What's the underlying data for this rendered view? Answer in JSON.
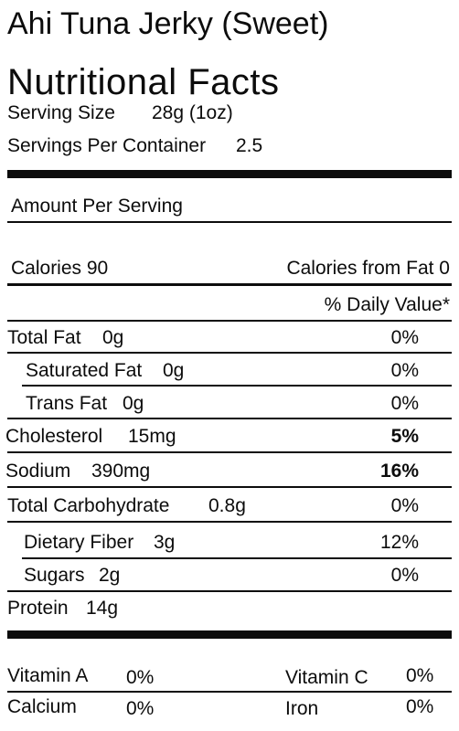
{
  "product_title": "Ahi Tuna Jerky (Sweet)",
  "heading": "Nutritional Facts",
  "serving_size": {
    "label": "Serving Size",
    "value": "28g (1oz)"
  },
  "servings_per_container": {
    "label": "Servings Per Container",
    "value": "2.5"
  },
  "amount_per_serving": "Amount Per Serving",
  "calories": {
    "label": "Calories 90",
    "from_fat": "Calories from Fat 0"
  },
  "daily_value_header": "% Daily Value*",
  "nutrients": [
    {
      "name": "Total Fat",
      "amount": "0g",
      "dv": "0%"
    },
    {
      "name": "Saturated Fat",
      "amount": "0g",
      "dv": "0%"
    },
    {
      "name": "Trans Fat",
      "amount": "0g",
      "dv": "0%"
    },
    {
      "name": "Cholesterol",
      "amount": "15mg",
      "dv": "5%"
    },
    {
      "name": "Sodium",
      "amount": "390mg",
      "dv": "16%"
    },
    {
      "name": "Total Carbohydrate",
      "amount": "0.8g",
      "dv": "0%"
    },
    {
      "name": "Dietary Fiber",
      "amount": "3g",
      "dv": "12%"
    },
    {
      "name": "Sugars",
      "amount": "2g",
      "dv": "0%"
    },
    {
      "name": "Protein",
      "amount": "14g",
      "dv": ""
    }
  ],
  "vitamins": [
    {
      "name": "Vitamin A",
      "dv": "0%"
    },
    {
      "name": "Vitamin C",
      "dv": "0%"
    },
    {
      "name": "Calcium",
      "dv": "0%"
    },
    {
      "name": "Iron",
      "dv": "0%"
    }
  ]
}
